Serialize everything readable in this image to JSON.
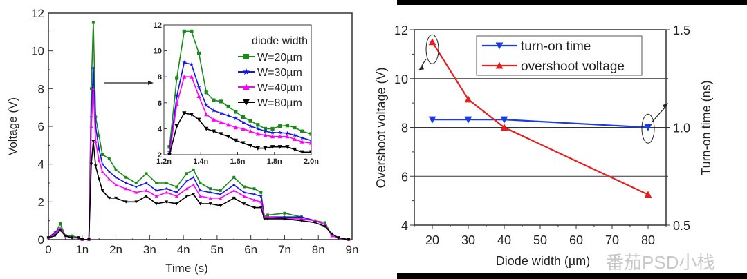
{
  "chart_data": [
    {
      "type": "line",
      "xlabel": "Time (s)",
      "ylabel": "Voltage (V)",
      "xlim": [
        0,
        9e-09
      ],
      "ylim": [
        0,
        12
      ],
      "xticks": [
        0,
        1e-09,
        2e-09,
        3e-09,
        4e-09,
        5e-09,
        6e-09,
        7e-09,
        8e-09,
        9e-09
      ],
      "xtick_labels": [
        "0",
        "1n",
        "2n",
        "3n",
        "4n",
        "5n",
        "6n",
        "7n",
        "8n",
        "9n"
      ],
      "yticks": [
        0,
        2,
        4,
        6,
        8,
        10,
        12
      ],
      "ytick_labels": [
        "0",
        "2",
        "4",
        "6",
        "8",
        "10",
        "12"
      ],
      "grid": false,
      "x_ns": [
        0,
        0.2,
        0.35,
        0.5,
        0.7,
        0.9,
        1.0,
        1.2,
        1.27,
        1.33,
        1.4,
        1.5,
        1.6,
        1.8,
        2.0,
        2.3,
        2.6,
        2.9,
        3.2,
        3.5,
        3.8,
        4.1,
        4.3,
        4.5,
        4.8,
        5.1,
        5.5,
        5.8,
        6.1,
        6.3,
        6.4,
        6.5,
        7.0,
        7.5,
        7.9,
        8.2,
        8.4,
        8.6,
        8.9
      ],
      "series": [
        {
          "name": "W=20µm",
          "color": "#1a8a1a",
          "marker": "square",
          "values": [
            0.1,
            0.3,
            0.85,
            0.2,
            0.2,
            0.1,
            0,
            0,
            8,
            11.5,
            6.5,
            5.5,
            4.5,
            4.3,
            3.7,
            3.3,
            3.0,
            3.5,
            3.0,
            3.0,
            2.8,
            3.5,
            3.7,
            3.0,
            2.7,
            2.6,
            3.3,
            2.8,
            2.7,
            2.5,
            1.2,
            1.3,
            1.4,
            1.2,
            1.0,
            0.9,
            0.2,
            0.1,
            0.0
          ]
        },
        {
          "name": "W=30µm",
          "color": "#1414e6",
          "marker": "star",
          "values": [
            0.1,
            0.4,
            0.6,
            0.2,
            0.1,
            0.1,
            0,
            0,
            6.5,
            9.1,
            6.0,
            4.8,
            4.0,
            3.6,
            3.3,
            3.0,
            2.8,
            3.0,
            2.6,
            2.7,
            2.5,
            3.1,
            3.3,
            2.6,
            2.5,
            2.4,
            2.9,
            2.5,
            2.4,
            2.3,
            1.2,
            1.2,
            1.2,
            1.2,
            1.0,
            0.8,
            0.2,
            0.1,
            0.0
          ]
        },
        {
          "name": "W=40µm",
          "color": "#ff00ff",
          "marker": "triangle-up",
          "values": [
            0.1,
            0.3,
            0.6,
            0.2,
            0.1,
            0.1,
            0,
            0,
            6,
            8,
            5.2,
            4.2,
            3.6,
            3.2,
            2.9,
            2.7,
            2.5,
            2.6,
            2.3,
            2.5,
            2.3,
            2.7,
            2.9,
            2.3,
            2.2,
            2.2,
            2.6,
            2.3,
            2.1,
            2.0,
            1.2,
            1.2,
            1.1,
            1.1,
            1.0,
            0.8,
            0.2,
            0.1,
            0.0
          ]
        },
        {
          "name": "W=80µm",
          "color": "#000000",
          "marker": "triangle-down",
          "values": [
            0.1,
            0.2,
            0.5,
            0.2,
            0.1,
            0.1,
            0,
            0,
            4,
            5.2,
            3.9,
            3.2,
            2.6,
            2.2,
            2.2,
            2.0,
            2.0,
            2.3,
            1.9,
            2.0,
            1.9,
            2.3,
            2.4,
            1.9,
            1.9,
            1.8,
            2.2,
            1.9,
            1.7,
            1.7,
            1.1,
            1.1,
            1.1,
            1.0,
            0.9,
            0.7,
            0.3,
            0.1,
            0.0
          ]
        }
      ],
      "inset": {
        "xlim": [
          1.2e-09,
          2e-09
        ],
        "ylim": [
          2,
          12
        ],
        "xtick_labels": [
          "1.2n",
          "1.4n",
          "1.6n",
          "1.8n",
          "2.0n"
        ],
        "xticks_ns": [
          1.2,
          1.4,
          1.6,
          1.8,
          2.0
        ],
        "yticks": [
          2,
          4,
          6,
          8,
          10,
          12
        ],
        "ytick_labels": [
          "2",
          "4",
          "6",
          "8",
          "10",
          "12"
        ],
        "legend_title": "diode width",
        "legend_placement": "top-right",
        "x_ns": [
          1.23,
          1.27,
          1.31,
          1.35,
          1.39,
          1.43,
          1.47,
          1.51,
          1.55,
          1.59,
          1.63,
          1.67,
          1.71,
          1.75,
          1.79,
          1.83,
          1.87,
          1.91,
          1.95,
          2.0
        ],
        "series_values": [
          [
            2.6,
            7.9,
            11.5,
            11.5,
            9.8,
            6.8,
            6.2,
            6.1,
            5.7,
            5.3,
            4.9,
            4.6,
            4.3,
            4.0,
            4.0,
            4.2,
            4.25,
            4.1,
            3.8,
            3.6
          ],
          [
            2.2,
            6.5,
            9.1,
            8.95,
            7.2,
            5.8,
            5.4,
            5.2,
            5.0,
            4.8,
            4.5,
            4.2,
            4.0,
            3.8,
            3.7,
            3.7,
            3.65,
            3.5,
            3.3,
            3.1
          ],
          [
            2.0,
            5.9,
            8.0,
            8.0,
            6.5,
            5.1,
            4.7,
            4.5,
            4.3,
            4.1,
            4.0,
            3.8,
            3.6,
            3.5,
            3.4,
            3.4,
            3.4,
            3.2,
            3.0,
            2.9
          ],
          [
            2.0,
            4.2,
            5.2,
            5.1,
            4.7,
            4.0,
            3.8,
            3.6,
            3.4,
            3.1,
            2.9,
            2.7,
            2.5,
            2.5,
            2.6,
            2.6,
            2.6,
            2.4,
            2.2,
            2.2
          ]
        ]
      }
    },
    {
      "type": "line",
      "xlabel": "Diode width (µm)",
      "ylabel": "Overshoot voltage (V)",
      "y2label": "Turn-on time (ns)",
      "xlim": [
        15,
        85
      ],
      "ylim": [
        4,
        12
      ],
      "y2lim": [
        0.5,
        1.5
      ],
      "xticks": [
        20,
        30,
        40,
        50,
        60,
        70,
        80
      ],
      "xtick_labels": [
        "20",
        "30",
        "40",
        "50",
        "60",
        "70",
        "80"
      ],
      "yticks": [
        4,
        6,
        8,
        10,
        12
      ],
      "ytick_labels": [
        "4",
        "6",
        "8",
        "10",
        "12"
      ],
      "y2ticks": [
        0.5,
        1.0,
        1.5
      ],
      "y2tick_labels": [
        "0.5",
        "1.0",
        "1.5"
      ],
      "grid": "horizontal at 6, 8, 10",
      "gridlines": [
        6,
        8,
        10
      ],
      "legend_placement": "top-center",
      "x": [
        20,
        30,
        40,
        80
      ],
      "series": [
        {
          "name": "turn-on time",
          "color": "#1a3ce0",
          "marker": "triangle-down",
          "axis": "right",
          "values": [
            1.04,
            1.04,
            1.04,
            1.0
          ]
        },
        {
          "name": "overshoot voltage",
          "color": "#e61e1e",
          "marker": "triangle-up",
          "axis": "left",
          "values": [
            11.5,
            9.15,
            8.0,
            5.25
          ]
        }
      ],
      "annotations": [
        "ellipse at x=20 on overshoot voltage with arrow to left axis",
        "ellipse at x=80 on turn-on time with arrow to right axis"
      ]
    }
  ],
  "watermark": "番茄PSD小栈"
}
